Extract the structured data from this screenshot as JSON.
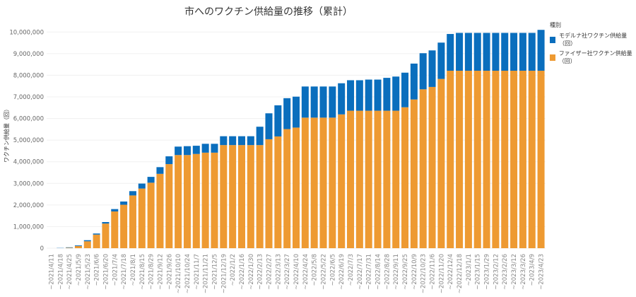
{
  "chart_data": {
    "type": "bar",
    "stacked": true,
    "title": "市へのワクチン供給量の推移（累計）",
    "xlabel": "",
    "ylabel": "ワクチン供給量（回）",
    "ylim": [
      0,
      10500000
    ],
    "yticks": [
      0,
      1000000,
      2000000,
      3000000,
      4000000,
      5000000,
      6000000,
      7000000,
      8000000,
      9000000,
      10000000
    ],
    "ytick_labels": [
      "0",
      "1,000,000",
      "2,000,000",
      "3,000,000",
      "4,000,000",
      "5,000,000",
      "6,000,000",
      "7,000,000",
      "8,000,000",
      "9,000,000",
      "10,000,000"
    ],
    "grid": true,
    "legend_placement": "right",
    "legend_title": "種別",
    "categories": [
      "~2021/4/11",
      "~2021/4/18",
      "~2021/4/25",
      "~2021/5/9",
      "~2021/5/23",
      "~2021/6/6",
      "~2021/6/20",
      "~2021/7/4",
      "~2021/7/18",
      "~2021/8/1",
      "~2021/8/15",
      "~2021/8/29",
      "~2021/9/12",
      "~2021/9/26",
      "~2021/10/10",
      "~2021/10/24",
      "~2021/11/7",
      "~2021/11/21",
      "~2021/12/5",
      "~2021/12/19",
      "~2022/1/2",
      "~2022/1/16",
      "~2022/1/30",
      "~2022/2/13",
      "~2022/2/27",
      "~2022/3/13",
      "~2022/3/27",
      "~2022/4/10",
      "~2022/4/24",
      "~2022/5/8",
      "~2022/5/22",
      "~2022/6/5",
      "~2022/6/19",
      "~2022/7/3",
      "~2022/7/17",
      "~2022/7/31",
      "~2022/8/14",
      "~2022/8/28",
      "~2022/9/11",
      "~2022/9/25",
      "~2022/10/9",
      "~2022/10/23",
      "~2022/11/6",
      "~2022/11/20",
      "~2022/12/4",
      "~2022/12/18",
      "~2023/1/1",
      "~2023/1/15",
      "~2023/1/29",
      "~2023/2/12",
      "~2023/2/26",
      "~2023/3/12",
      "~2023/3/26",
      "~2023/4/9",
      "~2023/4/23"
    ],
    "series": [
      {
        "name": "ファイザー社ワクチン供給量（回）",
        "color": "#EE9A32",
        "values": [
          0,
          0,
          20000,
          100000,
          320000,
          630000,
          1140000,
          1700000,
          2010000,
          2440000,
          2760000,
          3030000,
          3440000,
          3890000,
          4310000,
          4310000,
          4360000,
          4420000,
          4420000,
          4770000,
          4770000,
          4770000,
          4770000,
          4770000,
          5040000,
          5170000,
          5510000,
          5580000,
          6040000,
          6040000,
          6040000,
          6040000,
          6190000,
          6360000,
          6360000,
          6360000,
          6360000,
          6360000,
          6360000,
          6520000,
          6880000,
          7350000,
          7460000,
          7830000,
          8210000,
          8210000,
          8210000,
          8210000,
          8210000,
          8210000,
          8210000,
          8210000,
          8210000,
          8210000,
          8210000
        ]
      },
      {
        "name": "モデルナ社ワクチン供給量（回）",
        "color": "#0A6EBD",
        "values": [
          0,
          10000,
          20000,
          30000,
          50000,
          50000,
          70000,
          110000,
          150000,
          200000,
          230000,
          270000,
          310000,
          360000,
          390000,
          410000,
          380000,
          410000,
          410000,
          410000,
          410000,
          410000,
          410000,
          850000,
          1200000,
          1440000,
          1430000,
          1430000,
          1440000,
          1440000,
          1440000,
          1440000,
          1440000,
          1410000,
          1410000,
          1440000,
          1440000,
          1520000,
          1580000,
          1600000,
          1660000,
          1670000,
          1690000,
          1680000,
          1700000,
          1750000,
          1750000,
          1750000,
          1750000,
          1750000,
          1750000,
          1750000,
          1750000,
          1750000,
          1890000
        ]
      }
    ]
  }
}
